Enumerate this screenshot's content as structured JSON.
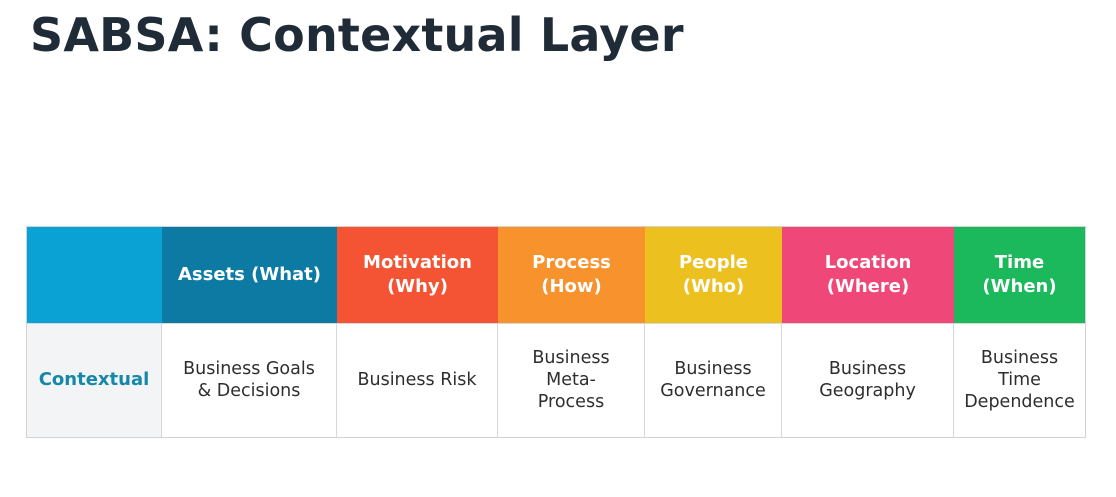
{
  "slide": {
    "title": "SABSA: Contextual Layer"
  },
  "matrix": {
    "columns": [
      {
        "label": "",
        "color": "#0aa2d4"
      },
      {
        "label": "Assets (What)",
        "color": "#0c7aa3"
      },
      {
        "label": "Motivation\n(Why)",
        "color": "#f55434"
      },
      {
        "label": "Process\n(How)",
        "color": "#f7922c"
      },
      {
        "label": "People\n(Who)",
        "color": "#ecc11f"
      },
      {
        "label": "Location\n(Where)",
        "color": "#f04779"
      },
      {
        "label": "Time\n(When)",
        "color": "#1bb85c"
      }
    ],
    "row": {
      "label": "Contextual",
      "cells": [
        "Business Goals\n& Decisions",
        "Business Risk",
        "Business\nMeta-\nProcess",
        "Business\nGovernance",
        "Business\nGeography",
        "Business\nTime\nDependence"
      ]
    }
  }
}
